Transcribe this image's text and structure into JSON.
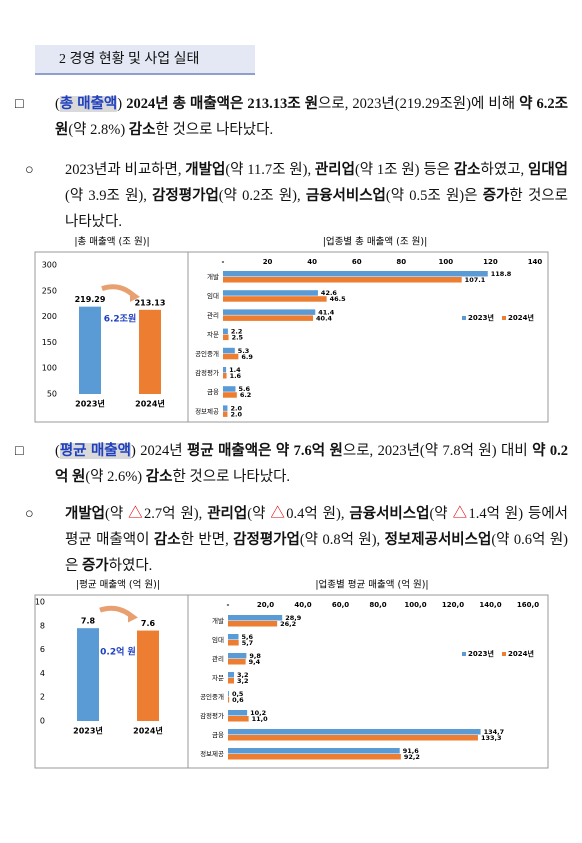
{
  "section_title": "2 경영 현황 및 사업 실태",
  "paragraphs": [
    {
      "marker": "□",
      "runs": [
        "(",
        {
          "text": "총 매출액",
          "highlight": true
        },
        ") ",
        {
          "text": "2024년 총 매출액은 213.13조 원",
          "bold": true
        },
        "으로, 2023년(219.29조원)에 비해 ",
        {
          "text": "약 6.2조 원",
          "bold": true
        },
        "(약 2.8%) ",
        {
          "text": "감소",
          "bold": true
        },
        "한 것으로 나타났다."
      ]
    },
    {
      "marker": "○",
      "runs": [
        "2023년과 비교하면, ",
        {
          "text": "개발업",
          "bold": true
        },
        "(약 11.7조 원), ",
        {
          "text": "관리업",
          "bold": true
        },
        "(약 1조 원) 등은 ",
        {
          "text": "감소",
          "bold": true
        },
        "하였고, ",
        {
          "text": "임대업",
          "bold": true
        },
        "(약 3.9조 원), ",
        {
          "text": "감정평가업",
          "bold": true
        },
        "(약 0.2조 원), ",
        {
          "text": "금융서비스업",
          "bold": true
        },
        "(약 0.5조 원)은 ",
        {
          "text": "증가",
          "bold": true
        },
        "한 것으로 나타났다."
      ]
    },
    {
      "marker": "□",
      "runs": [
        "(",
        {
          "text": "평균 매출액",
          "highlight": true
        },
        ") 2024년 ",
        {
          "text": "평균 매출액은 약 7.6억 원",
          "bold": true
        },
        "으로, 2023년(약 7.8억 원) 대비 ",
        {
          "text": "약 0.2억 원",
          "bold": true
        },
        "(약 2.6%) ",
        {
          "text": "감소",
          "bold": true
        },
        "한 것으로 나타났다."
      ]
    },
    {
      "marker": "○",
      "runs": [
        {
          "text": "개발업",
          "bold": true
        },
        "(약 ",
        {
          "text": "△",
          "color": "#e00000"
        },
        "2.7억 원), ",
        {
          "text": "관리업",
          "bold": true
        },
        "(약 ",
        {
          "text": "△",
          "color": "#e00000"
        },
        "0.4억 원), ",
        {
          "text": "금융서비스업",
          "bold": true
        },
        "(약 ",
        {
          "text": "△",
          "color": "#e00000"
        },
        "1.4억 원) 등에서 평균 매출액이 ",
        {
          "text": "감소",
          "bold": true
        },
        "한 반면, ",
        {
          "text": "감정평가업",
          "bold": true
        },
        "(약 0.8억 원), ",
        {
          "text": "정보제공서비스업",
          "bold": true
        },
        "(약 0.6억 원)은 ",
        {
          "text": "증가",
          "bold": true
        },
        "하였다."
      ]
    }
  ],
  "chart_data": [
    {
      "type": "bar",
      "title": "|총 매출액 (조 원)|",
      "categories": [
        "2023년",
        "2024년"
      ],
      "values": [
        219.29,
        213.13
      ],
      "colors": [
        "#5b9bd5",
        "#ed7d31"
      ],
      "ylim": [
        50,
        300
      ],
      "yticks": [
        50,
        100,
        150,
        200,
        250,
        300
      ],
      "annotation": "6.2조원"
    },
    {
      "type": "hbar",
      "title": "|업종별 총 매출액 (조 원)|",
      "categories": [
        "개발",
        "임대",
        "관리",
        "자문",
        "공인중개",
        "감정평가",
        "금융",
        "정보제공"
      ],
      "series": [
        {
          "name": "2023년",
          "color": "#5b9bd5",
          "values": [
            118.8,
            42.6,
            41.4,
            2.2,
            5.3,
            1.4,
            5.6,
            2.0
          ],
          "value_labels": [
            "118.8",
            "42.6",
            "41.4",
            "2.2",
            "5.3",
            "1.4",
            "5.6",
            "2.0"
          ]
        },
        {
          "name": "2024년",
          "color": "#ed7d31",
          "values": [
            107.1,
            46.5,
            40.4,
            2.5,
            6.9,
            1.6,
            6.2,
            2.0
          ],
          "value_labels": [
            "107.1",
            "46.5",
            "40.4",
            "2.5",
            "6.9",
            "1.6",
            "6.2",
            "2.0"
          ]
        }
      ],
      "xlim": [
        0,
        140
      ],
      "xticks": [
        {
          "value": 0,
          "label": "-"
        },
        20,
        40,
        60,
        80,
        100,
        120,
        140
      ],
      "legend": "right"
    },
    {
      "type": "bar",
      "title": "|평균 매출액 (억 원)|",
      "categories": [
        "2023년",
        "2024년"
      ],
      "values": [
        7.8,
        7.6
      ],
      "colors": [
        "#5b9bd5",
        "#ed7d31"
      ],
      "ylim": [
        0,
        10
      ],
      "yticks": [
        0,
        2,
        4,
        6,
        8,
        10
      ],
      "annotation": "0.2억 원"
    },
    {
      "type": "hbar",
      "title": "|업종별 평균 매출액 (억 원)|",
      "categories": [
        "개발",
        "임대",
        "관리",
        "자문",
        "공인중개",
        "감정평가",
        "금융",
        "정보제공"
      ],
      "series": [
        {
          "name": "2023년",
          "color": "#5b9bd5",
          "values": [
            28.9,
            5.6,
            9.8,
            3.2,
            0.5,
            10.2,
            134.7,
            91.6
          ],
          "value_labels": [
            "28,9",
            "5,6",
            "9,8",
            "3,2",
            "0,5",
            "10,2",
            "134,7",
            "91,6"
          ]
        },
        {
          "name": "2024년",
          "color": "#ed7d31",
          "values": [
            26.2,
            5.7,
            9.4,
            3.2,
            0.6,
            11.0,
            133.3,
            92.2
          ],
          "value_labels": [
            "26,2",
            "5,7",
            "9,4",
            "3,2",
            "0,6",
            "11,0",
            "133,3",
            "92,2"
          ]
        }
      ],
      "xlim": [
        0,
        160
      ],
      "xticks": [
        {
          "value": 0,
          "label": "-"
        },
        {
          "value": 20,
          "label": "20,0"
        },
        {
          "value": 40,
          "label": "40,0"
        },
        {
          "value": 60,
          "label": "60,0"
        },
        {
          "value": 80,
          "label": "80,0"
        },
        {
          "value": 100,
          "label": "100,0"
        },
        {
          "value": 120,
          "label": "120,0"
        },
        {
          "value": 140,
          "label": "140,0"
        },
        {
          "value": 160,
          "label": "160,0"
        }
      ],
      "legend": "right"
    }
  ]
}
